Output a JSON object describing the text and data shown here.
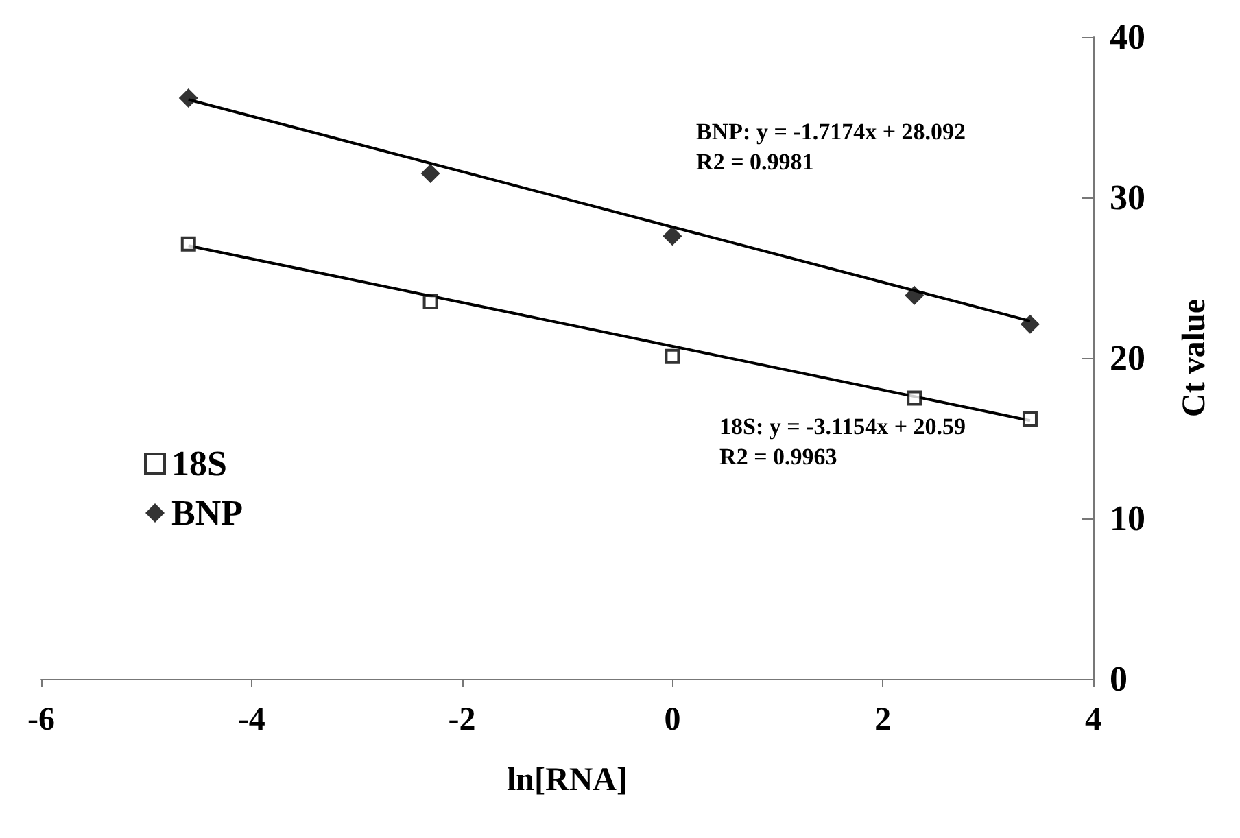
{
  "chart_data": {
    "type": "scatter",
    "xlabel": "ln[RNA]",
    "ylabel": "Ct value",
    "xlim": [
      -6,
      4
    ],
    "xticks": [
      -6,
      -4,
      -2,
      0,
      2,
      4
    ],
    "ylim": [
      0,
      40
    ],
    "yticks": [
      0,
      10,
      20,
      30,
      40
    ],
    "grid": false,
    "legend": "left",
    "series": [
      {
        "name": "18S",
        "color": "#000000",
        "marker": "square",
        "x": [
          -4.6,
          -2.3,
          0,
          2.3,
          3.4
        ],
        "values": [
          27.1,
          23.5,
          20.1,
          17.5,
          16.2
        ]
      },
      {
        "name": "BNP",
        "color": "#000000",
        "marker": "diamond",
        "x": [
          -4.6,
          -2.3,
          0,
          2.3,
          3.4
        ],
        "values": [
          36.2,
          31.5,
          27.6,
          23.9,
          22.1
        ]
      },
      {
        "type": "line",
        "color": "#000000",
        "marker": "none",
        "line_style": "solid",
        "x": [
          -4.6,
          3.4
        ],
        "values": [
          27.0,
          16.1
        ]
      },
      {
        "type": "line",
        "color": "#000000",
        "marker": "none",
        "line_style": "solid",
        "x": [
          -4.6,
          3.4
        ],
        "values": [
          36.1,
          22.3
        ]
      }
    ],
    "annotations": [
      "BNP: y = -1.7174x + 28.092\nR2 = 0.9981",
      "18S: y = -3.1154x + 20.59\nR2 = 0.9963"
    ]
  }
}
